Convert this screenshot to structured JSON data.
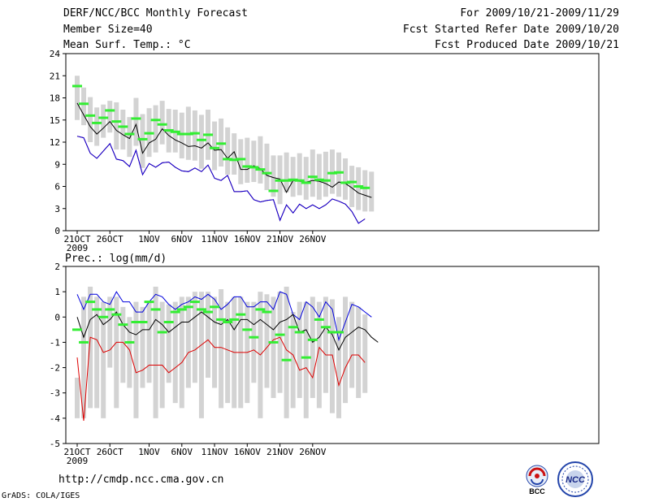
{
  "header": {
    "title": "DERF/NCC/BCC Monthly Forecast",
    "member_size": "Member Size=40",
    "variable": "Mean Surf. Temp.: °C",
    "period": "For 2009/10/21-2009/11/29",
    "fcst_started": "Fcst Started Refer Date 2009/10/20",
    "fcst_produced": "Fcst Produced Date 2009/10/21"
  },
  "footer": {
    "url": "http://cmdp.ncc.cma.gov.cn",
    "credit": "GrADS: COLA/IGES"
  },
  "logos": {
    "bcc": "BCC",
    "ncc": "NCC"
  },
  "colors": {
    "max": "#0000dd",
    "min": "#dd0000",
    "mean": "#000000",
    "box": "#d3d3d3",
    "obs": "#33ee33"
  },
  "chart_data": [
    {
      "type": "box-line",
      "title": "Mean Surf. Temp.: °C",
      "ylim": [
        0,
        24
      ],
      "yticks": [
        "0",
        "3",
        "6",
        "9",
        "12",
        "15",
        "18",
        "21",
        "24"
      ],
      "yticks_values": [
        0,
        3,
        6,
        9,
        12,
        15,
        18,
        21,
        24
      ],
      "xticks": [
        {
          "day": 1,
          "label": "21OCT"
        },
        {
          "day": 6,
          "label": "26OCT"
        },
        {
          "day": 12,
          "label": "1NOV"
        },
        {
          "day": 17,
          "label": "6NOV"
        },
        {
          "day": 22,
          "label": "11NOV"
        },
        {
          "day": 27,
          "label": "16NOV"
        },
        {
          "day": 32,
          "label": "21NOV"
        },
        {
          "day": 37,
          "label": "26NOV"
        }
      ],
      "year_label": "2009",
      "days": 40,
      "series": [
        {
          "name": "max",
          "values": [
            12.8,
            12.6,
            10.5,
            9.8,
            10.8,
            11.8,
            9.7,
            9.5,
            8.7,
            10.9,
            7.6,
            9.1,
            8.6,
            9.2,
            9.3,
            8.6,
            8.1,
            8.0,
            8.5,
            8.0,
            8.9,
            7.1,
            6.8,
            7.5,
            5.3,
            5.3,
            5.4,
            4.2,
            3.9,
            4.1,
            4.2,
            1.4,
            3.5,
            2.4,
            3.6,
            3.0,
            3.5,
            3.0,
            3.5,
            4.3,
            4.0,
            3.6,
            2.6,
            1.0,
            1.6
          ]
        },
        {
          "name": "min",
          "values": [
            12.8,
            12.6,
            10.5,
            9.8,
            10.8,
            11.8,
            9.7,
            9.5,
            8.7,
            10.9,
            7.6,
            9.1,
            8.6,
            9.2,
            9.3,
            8.6,
            8.1,
            8.0,
            8.5,
            8.0,
            8.9,
            7.1,
            6.8,
            7.5,
            5.3,
            5.3,
            5.4,
            4.2,
            3.9,
            4.1,
            4.2,
            1.4,
            3.5,
            2.4,
            3.6,
            3.0,
            3.5,
            3.0,
            3.5,
            4.3,
            4.0,
            3.6,
            2.6,
            1.0,
            1.6
          ]
        },
        {
          "name": "mean",
          "values": [
            17.3,
            15.7,
            14.1,
            13.1,
            13.9,
            14.8,
            13.6,
            13.0,
            12.5,
            14.4,
            10.5,
            11.9,
            12.4,
            13.8,
            12.9,
            12.3,
            11.9,
            11.4,
            11.5,
            11.2,
            11.9,
            10.9,
            11.0,
            9.8,
            10.7,
            8.3,
            8.3,
            8.8,
            8.4,
            7.5,
            7.2,
            7.0,
            5.2,
            6.8,
            6.7,
            6.6,
            6.8,
            6.7,
            6.4,
            5.9,
            6.6,
            6.4,
            5.8,
            5.1,
            4.8,
            4.5
          ]
        },
        {
          "name": "obs",
          "values": [
            19.6,
            17.2,
            15.6,
            14.6,
            15.3,
            16.3,
            14.8,
            14.1,
            13.1,
            15.2,
            12.4,
            13.2,
            15.0,
            14.4,
            13.6,
            13.4,
            13.1,
            13.1,
            13.2,
            12.3,
            13.0,
            11.2,
            11.8,
            9.7,
            9.6,
            9.7,
            8.7,
            8.6,
            8.3,
            7.8,
            5.4,
            6.8,
            6.8,
            6.9,
            6.8,
            6.5,
            7.3,
            6.9,
            6.8,
            7.8,
            7.9,
            6.5,
            6.6,
            6.0,
            5.8
          ]
        }
      ],
      "boxes_low": [
        15.0,
        14.3,
        12.0,
        11.5,
        12.6,
        13.3,
        11.0,
        11.0,
        10.0,
        11.5,
        8.5,
        10.0,
        10.6,
        11.7,
        10.6,
        10.6,
        9.8,
        9.6,
        9.5,
        8.4,
        9.6,
        8.2,
        8.7,
        7.6,
        7.6,
        6.3,
        6.5,
        6.6,
        6.4,
        5.5,
        4.6,
        3.6,
        5.2,
        4.6,
        4.8,
        4.2,
        4.6,
        4.2,
        4.6,
        5.0,
        4.6,
        4.2,
        3.2,
        2.8,
        2.6,
        2.6
      ],
      "boxes_high": [
        21.0,
        19.4,
        18.1,
        16.7,
        17.1,
        17.6,
        17.4,
        16.4,
        15.4,
        18.0,
        15.8,
        16.6,
        17.0,
        17.6,
        16.5,
        16.4,
        16.0,
        16.8,
        16.3,
        15.7,
        16.4,
        14.8,
        15.2,
        14.0,
        13.2,
        12.4,
        12.6,
        12.2,
        12.8,
        11.8,
        10.2,
        10.2,
        10.6,
        10.0,
        10.5,
        10.0,
        11.0,
        10.4,
        10.7,
        11.0,
        10.6,
        9.8,
        8.8,
        8.6,
        8.2,
        8.0
      ]
    },
    {
      "type": "box-line",
      "title": "Prec.: log(mm/d)",
      "ylim": [
        -5,
        2
      ],
      "yticks": [
        "-5",
        "-4",
        "-3",
        "-2",
        "-1",
        "0",
        "1",
        "2"
      ],
      "yticks_values": [
        -5,
        -4,
        -3,
        -2,
        -1,
        0,
        1,
        2
      ],
      "xticks": [
        {
          "day": 1,
          "label": "21OCT"
        },
        {
          "day": 6,
          "label": "26OCT"
        },
        {
          "day": 12,
          "label": "1NOV"
        },
        {
          "day": 17,
          "label": "6NOV"
        },
        {
          "day": 22,
          "label": "11NOV"
        },
        {
          "day": 27,
          "label": "16NOV"
        },
        {
          "day": 32,
          "label": "21NOV"
        },
        {
          "day": 37,
          "label": "26NOV"
        }
      ],
      "year_label": "2009",
      "days": 40,
      "series": [
        {
          "name": "max",
          "values": [
            0.9,
            0.3,
            0.9,
            0.9,
            0.6,
            0.5,
            1.0,
            0.6,
            0.6,
            0.2,
            0.2,
            0.6,
            0.9,
            0.8,
            0.5,
            0.3,
            0.5,
            0.6,
            0.8,
            0.7,
            0.9,
            0.7,
            0.3,
            0.5,
            0.8,
            0.8,
            0.4,
            0.4,
            0.6,
            0.6,
            0.3,
            1.0,
            0.9,
            0.1,
            -0.1,
            0.6,
            0.4,
            0.0,
            0.6,
            0.3,
            -0.9,
            -0.2,
            0.5,
            0.4,
            0.2,
            0.0
          ]
        },
        {
          "name": "min",
          "values": [
            -1.6,
            -4.1,
            -0.8,
            -0.9,
            -1.4,
            -1.3,
            -1.0,
            -1.0,
            -1.3,
            -2.2,
            -2.1,
            -1.9,
            -1.9,
            -1.9,
            -2.2,
            -2.0,
            -1.8,
            -1.4,
            -1.3,
            -1.1,
            -0.9,
            -1.2,
            -1.2,
            -1.3,
            -1.4,
            -1.4,
            -1.4,
            -1.3,
            -1.5,
            -1.2,
            -0.9,
            -0.8,
            -1.3,
            -1.5,
            -2.1,
            -2.0,
            -2.4,
            -1.2,
            -1.5,
            -1.5,
            -2.7,
            -2.0,
            -1.5,
            -1.5,
            -1.8
          ]
        },
        {
          "name": "mean",
          "values": [
            0.0,
            -0.8,
            -0.1,
            0.1,
            -0.3,
            -0.1,
            0.2,
            -0.3,
            -0.6,
            -0.7,
            -0.5,
            -0.5,
            -0.1,
            -0.3,
            -0.6,
            -0.4,
            -0.2,
            -0.2,
            0.0,
            0.2,
            0.0,
            -0.2,
            -0.3,
            -0.1,
            -0.5,
            -0.1,
            -0.1,
            -0.3,
            -0.1,
            -0.3,
            -0.5,
            -0.2,
            -0.1,
            0.1,
            -0.6,
            -0.5,
            -1.0,
            -0.8,
            -0.4,
            -0.7,
            -1.3,
            -0.8,
            -0.6,
            -0.4,
            -0.5,
            -0.8,
            -1.0
          ]
        },
        {
          "name": "obs",
          "values": [
            -0.5,
            -1.0,
            0.6,
            0.3,
            0.0,
            0.3,
            0.1,
            -0.3,
            -1.0,
            -0.2,
            -0.2,
            0.6,
            0.3,
            -0.6,
            -0.2,
            0.2,
            0.3,
            0.4,
            0.6,
            0.3,
            0.2,
            0.4,
            -0.1,
            -0.2,
            -0.1,
            0.1,
            -0.5,
            -0.8,
            0.3,
            0.2,
            -1.0,
            -0.7,
            -1.7,
            -0.4,
            -0.6,
            -1.6,
            -0.9,
            -0.1,
            -0.4,
            -0.6,
            -0.6
          ]
        }
      ],
      "boxes_low": [
        -4.0,
        -4.0,
        -3.6,
        -3.6,
        -4.0,
        -2.0,
        -3.6,
        -2.6,
        -2.8,
        -4.0,
        -2.8,
        -2.6,
        -4.0,
        -3.6,
        -2.6,
        -3.4,
        -3.6,
        -2.8,
        -2.6,
        -4.0,
        -2.4,
        -2.8,
        -3.6,
        -3.4,
        -3.6,
        -3.6,
        -3.4,
        -2.6,
        -4.0,
        -2.8,
        -3.2,
        -3.0,
        -4.0,
        -3.6,
        -3.2,
        -4.0,
        -3.2,
        -3.6,
        -3.0,
        -3.8,
        -4.0,
        -3.4,
        -2.8,
        -3.2,
        -3.0
      ],
      "boxes_high": [
        -2.4,
        0.8,
        1.2,
        0.8,
        0.6,
        0.8,
        0.8,
        0.4,
        0.0,
        0.6,
        0.4,
        0.6,
        1.2,
        0.6,
        0.5,
        0.6,
        0.8,
        0.8,
        1.0,
        1.0,
        1.0,
        0.8,
        1.1,
        0.6,
        0.8,
        0.8,
        0.6,
        0.6,
        1.0,
        0.9,
        0.8,
        1.0,
        1.2,
        0.2,
        0.6,
        0.6,
        0.8,
        0.6,
        0.8,
        0.7,
        0.0,
        0.8,
        0.6,
        0.4,
        0.1
      ]
    }
  ]
}
